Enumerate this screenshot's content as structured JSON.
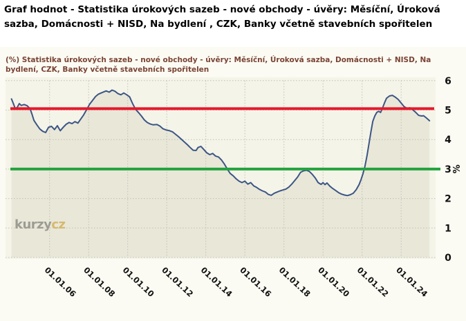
{
  "page": {
    "title": "Graf hodnot - Statistika úrokových sazeb - nové obchody - úvěry: Měsíční, Úroková sazba, Domácnosti + NISD, Na bydlení , CZK, Banky včetně stavebních spořitelen"
  },
  "chart": {
    "subtitle": "(%) Statistika úrokových sazeb - nové obchody - úvěry: Měsíční, Úroková sazba, Domácnosti + NISD, Na bydlení, CZK, Banky včetně stavebních spořitelen",
    "watermark_part1": "kurzy",
    "watermark_part2": "cz"
  },
  "chart_data": {
    "type": "line",
    "title": "(%) Statistika úrokových sazeb - nové obchody - úvěry: Měsíční, Úroková sazba, Domácnosti + NISD, Na bydlení, CZK, Banky včetně stavebních spořitelen",
    "xlabel": "",
    "ylabel": "%",
    "ylim": [
      0,
      6
    ],
    "yticks": [
      0,
      1,
      2,
      3,
      4,
      5,
      6
    ],
    "xtick_years": [
      2006,
      2008,
      2010,
      2012,
      2014,
      2016,
      2018,
      2020,
      2022,
      2024
    ],
    "xticklabels": [
      "01.01.06",
      "01.01.08",
      "01.01.10",
      "01.01.12",
      "01.01.14",
      "01.01.16",
      "01.01.18",
      "01.01.20",
      "01.01.22",
      "01.01.24"
    ],
    "grid": "dotted",
    "legend_position": "none",
    "reference_lines": [
      {
        "name": "red-level",
        "value": 5.05,
        "color": "#e6192b"
      },
      {
        "name": "green-level",
        "value": 3.0,
        "color": "#23a33f"
      }
    ],
    "colors": {
      "series_line": "#3b5585",
      "series_fill": "#e9e7d8",
      "plot_background": "#f5f4e8",
      "figure_background": "#fbfbf3",
      "gridline": "#bfbfb6"
    },
    "series": [
      {
        "name": "Úroková sazba (%)",
        "x": [
          2004.05,
          2004.15,
          2004.25,
          2004.35,
          2004.45,
          2004.55,
          2004.7,
          2004.85,
          2005.0,
          2005.1,
          2005.2,
          2005.35,
          2005.5,
          2005.65,
          2005.8,
          2005.95,
          2006.1,
          2006.25,
          2006.4,
          2006.55,
          2006.7,
          2006.85,
          2007.0,
          2007.15,
          2007.3,
          2007.45,
          2007.6,
          2007.75,
          2007.9,
          2008.05,
          2008.2,
          2008.35,
          2008.5,
          2008.7,
          2008.9,
          2009.05,
          2009.2,
          2009.35,
          2009.5,
          2009.65,
          2009.8,
          2009.95,
          2010.1,
          2010.25,
          2010.4,
          2010.55,
          2010.7,
          2010.85,
          2011.0,
          2011.15,
          2011.3,
          2011.5,
          2011.65,
          2011.8,
          2011.95,
          2012.15,
          2012.3,
          2012.45,
          2012.6,
          2012.75,
          2012.9,
          2013.05,
          2013.2,
          2013.35,
          2013.5,
          2013.6,
          2013.75,
          2013.9,
          2014.05,
          2014.2,
          2014.35,
          2014.5,
          2014.65,
          2014.8,
          2014.95,
          2015.1,
          2015.25,
          2015.4,
          2015.55,
          2015.7,
          2015.85,
          2016.0,
          2016.15,
          2016.3,
          2016.45,
          2016.6,
          2016.75,
          2016.9,
          2017.05,
          2017.2,
          2017.35,
          2017.5,
          2017.65,
          2017.8,
          2017.95,
          2018.1,
          2018.25,
          2018.4,
          2018.55,
          2018.7,
          2018.85,
          2019.0,
          2019.15,
          2019.3,
          2019.45,
          2019.6,
          2019.75,
          2019.9,
          2020.0,
          2020.1,
          2020.2,
          2020.35,
          2020.5,
          2020.65,
          2020.8,
          2020.95,
          2021.1,
          2021.25,
          2021.4,
          2021.55,
          2021.7,
          2021.85,
          2021.95,
          2022.05,
          2022.15,
          2022.25,
          2022.35,
          2022.45,
          2022.55,
          2022.65,
          2022.75,
          2022.85,
          2022.95,
          2023.05,
          2023.15,
          2023.25,
          2023.4,
          2023.55,
          2023.7,
          2023.85,
          2024.0,
          2024.15,
          2024.3,
          2024.45,
          2024.6,
          2024.75,
          2024.9,
          2025.05,
          2025.15,
          2025.3,
          2025.45
        ],
        "y": [
          5.38,
          5.22,
          5.04,
          5.1,
          5.22,
          5.16,
          5.19,
          5.15,
          5.05,
          4.86,
          4.65,
          4.5,
          4.36,
          4.28,
          4.24,
          4.42,
          4.45,
          4.34,
          4.47,
          4.3,
          4.42,
          4.52,
          4.58,
          4.54,
          4.61,
          4.56,
          4.7,
          4.84,
          5.02,
          5.2,
          5.33,
          5.46,
          5.54,
          5.6,
          5.65,
          5.61,
          5.68,
          5.64,
          5.56,
          5.52,
          5.58,
          5.52,
          5.45,
          5.22,
          5.03,
          4.92,
          4.8,
          4.67,
          4.58,
          4.53,
          4.5,
          4.51,
          4.46,
          4.37,
          4.33,
          4.3,
          4.26,
          4.18,
          4.1,
          4.01,
          3.92,
          3.83,
          3.73,
          3.64,
          3.63,
          3.73,
          3.77,
          3.66,
          3.55,
          3.49,
          3.53,
          3.44,
          3.41,
          3.31,
          3.17,
          3.0,
          2.85,
          2.77,
          2.67,
          2.59,
          2.54,
          2.59,
          2.49,
          2.54,
          2.43,
          2.38,
          2.31,
          2.26,
          2.22,
          2.14,
          2.11,
          2.18,
          2.22,
          2.26,
          2.29,
          2.32,
          2.39,
          2.49,
          2.61,
          2.73,
          2.89,
          2.94,
          2.96,
          2.92,
          2.82,
          2.7,
          2.54,
          2.48,
          2.54,
          2.47,
          2.53,
          2.42,
          2.34,
          2.27,
          2.2,
          2.15,
          2.12,
          2.1,
          2.13,
          2.18,
          2.3,
          2.48,
          2.65,
          2.85,
          3.1,
          3.45,
          3.85,
          4.25,
          4.62,
          4.8,
          4.92,
          4.96,
          4.92,
          5.08,
          5.25,
          5.4,
          5.48,
          5.5,
          5.44,
          5.36,
          5.24,
          5.12,
          5.06,
          5.08,
          5.01,
          4.92,
          4.82,
          4.8,
          4.81,
          4.73,
          4.64
        ]
      }
    ]
  }
}
